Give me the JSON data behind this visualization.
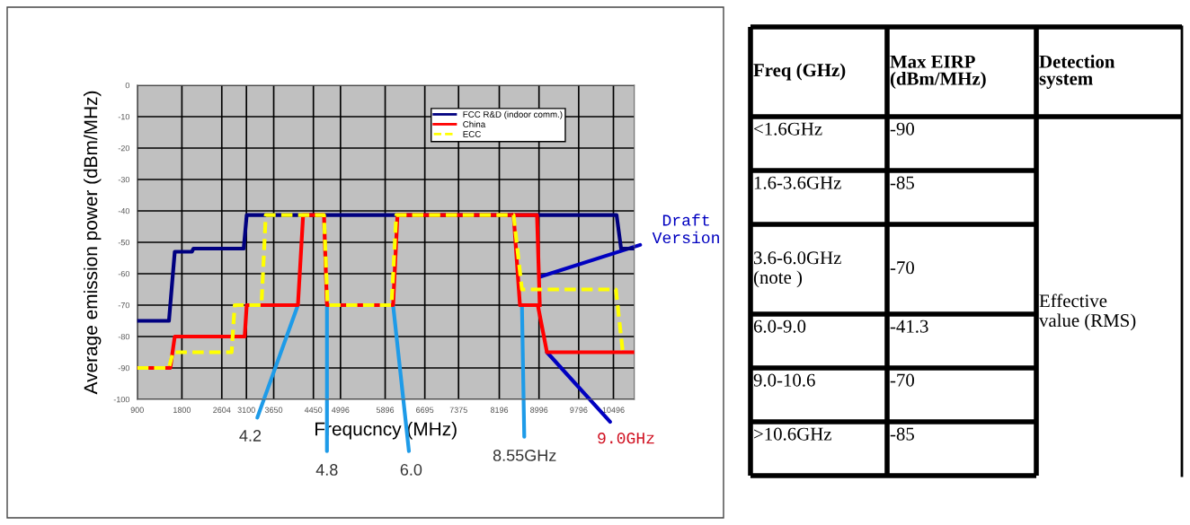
{
  "chart_data": [
    {
      "type": "line",
      "xlabel": "Frequcncy (MHz)",
      "ylabel": "Average emission power (dBm/MHz)",
      "xlim": [
        900,
        10916
      ],
      "xticks": [
        900,
        1800,
        2604,
        3100,
        3650,
        4450,
        4996,
        5896,
        6695,
        7375,
        8196,
        8996,
        9796,
        10496
      ],
      "ylim": [
        -100,
        0
      ],
      "yticks": [
        -100,
        -90,
        -80,
        -70,
        -60,
        -50,
        -40,
        -30,
        -20,
        -10,
        0
      ],
      "grid": true,
      "legend": "top right",
      "marker": "none",
      "series": [
        {
          "name": "FCC R&D (indoor comm.)",
          "color": "#000080",
          "line_style": "solid",
          "x": [
            900,
            1539,
            1656,
            2001,
            2033,
            3045,
            3106,
            10559,
            10650,
            10916
          ],
          "values": [
            -75,
            -75,
            -53,
            -53,
            -52,
            -52,
            -41.3,
            -41.3,
            -52,
            -52
          ]
        },
        {
          "name": "China",
          "color": "#ff0000",
          "line_style": "solid",
          "x": [
            900,
            1566,
            1656,
            3065,
            3106,
            4138,
            4243,
            4663,
            4723,
            6056,
            6144,
            8484,
            8612,
            8972,
            9156,
            10916
          ],
          "values": [
            -90,
            -90,
            -80,
            -80,
            -70,
            -70,
            -41.3,
            -41.3,
            -70,
            -70,
            -41.3,
            -41.3,
            -70,
            -70,
            -85,
            -85
          ]
        },
        {
          "color": "#ff0000",
          "line_style": "solid",
          "x": [
            8484,
            8956,
            9012
          ],
          "values": [
            -41.3,
            -41.3,
            -70
          ]
        },
        {
          "name": "ECC",
          "color": "#ffff00",
          "line_style": "dashed",
          "x": [
            900,
            1539,
            1620,
            2802,
            2864,
            3403,
            3490,
            4663,
            4735,
            6024,
            6120,
            8484,
            8652,
            10545,
            10685
          ],
          "values": [
            -90,
            -90,
            -85,
            -85,
            -70,
            -70,
            -41.3,
            -41.3,
            -70,
            -70,
            -41.3,
            -41.3,
            -65,
            -65,
            -85
          ]
        }
      ],
      "annotations": [
        {
          "text": "4.2",
          "x": 4138,
          "y": -70
        },
        {
          "text": "4.8",
          "x": 4723,
          "y": -70
        },
        {
          "text": "6.0",
          "x": 6056,
          "y": -70
        },
        {
          "text": "8.55GHz",
          "x": 8652,
          "y": -70
        },
        {
          "text": "9.0GHz",
          "x": 9156,
          "y": -85
        },
        {
          "text": "Draft\nVersion",
          "x": 9012,
          "y": -61
        }
      ]
    },
    {
      "type": "other",
      "annotations": [
        "Freq (GHz)",
        "Max EIRP (dBm/MHz)",
        "Detection system",
        "<1.6GHz",
        "-90",
        "1.6-3.6GHz",
        "-85",
        "3.6-6.0GHz (note )",
        "-70",
        "6.0-9.0",
        "-41.3",
        "9.0-10.6",
        "-70",
        ">10.6GHz",
        "-85",
        "Effective value (RMS)"
      ]
    }
  ]
}
